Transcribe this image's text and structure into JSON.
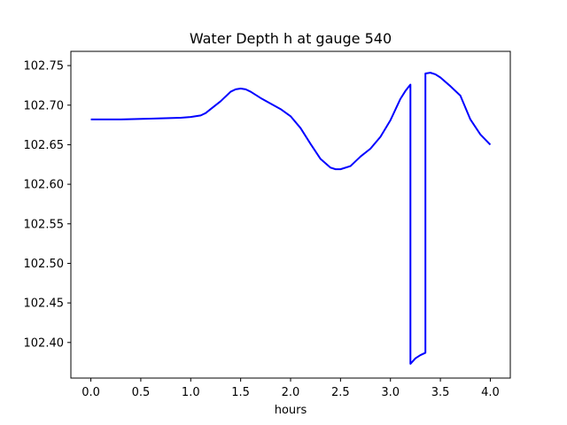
{
  "chart_data": {
    "type": "line",
    "title": "Water Depth h at gauge 540",
    "xlabel": "hours",
    "ylabel": "",
    "xlim": [
      -0.2,
      4.2
    ],
    "ylim": [
      102.355,
      102.768
    ],
    "x_ticks": [
      0.0,
      0.5,
      1.0,
      1.5,
      2.0,
      2.5,
      3.0,
      3.5,
      4.0
    ],
    "x_tick_labels": [
      "0.0",
      "0.5",
      "1.0",
      "1.5",
      "2.0",
      "2.5",
      "3.0",
      "3.5",
      "4.0"
    ],
    "y_ticks": [
      102.4,
      102.45,
      102.5,
      102.55,
      102.6,
      102.65,
      102.7,
      102.75
    ],
    "y_tick_labels": [
      "102.40",
      "102.45",
      "102.50",
      "102.55",
      "102.60",
      "102.65",
      "102.70",
      "102.75"
    ],
    "grid": false,
    "color": "#0000ff",
    "series": [
      {
        "x": [
          0.0,
          0.3,
          0.6,
          0.9,
          1.0,
          1.1,
          1.15,
          1.2,
          1.3,
          1.4,
          1.45,
          1.5,
          1.55,
          1.6,
          1.7,
          1.8,
          1.9,
          2.0,
          2.1,
          2.2,
          2.3,
          2.4,
          2.45,
          2.5,
          2.6,
          2.7,
          2.8,
          2.9,
          3.0,
          3.1,
          3.15,
          3.2,
          3.2,
          3.25,
          3.3,
          3.35,
          3.35,
          3.4,
          3.45,
          3.5,
          3.6,
          3.7,
          3.8,
          3.9,
          4.0
        ],
        "y": [
          102.682,
          102.682,
          102.683,
          102.684,
          102.685,
          102.687,
          102.69,
          102.695,
          102.705,
          102.717,
          102.72,
          102.721,
          102.72,
          102.717,
          102.709,
          102.702,
          102.695,
          102.686,
          102.671,
          102.651,
          102.632,
          102.621,
          102.619,
          102.619,
          102.623,
          102.635,
          102.645,
          102.66,
          102.681,
          102.708,
          102.718,
          102.726,
          102.373,
          102.38,
          102.384,
          102.387,
          102.74,
          102.741,
          102.739,
          102.735,
          102.724,
          102.712,
          102.682,
          102.663,
          102.65
        ]
      }
    ]
  }
}
